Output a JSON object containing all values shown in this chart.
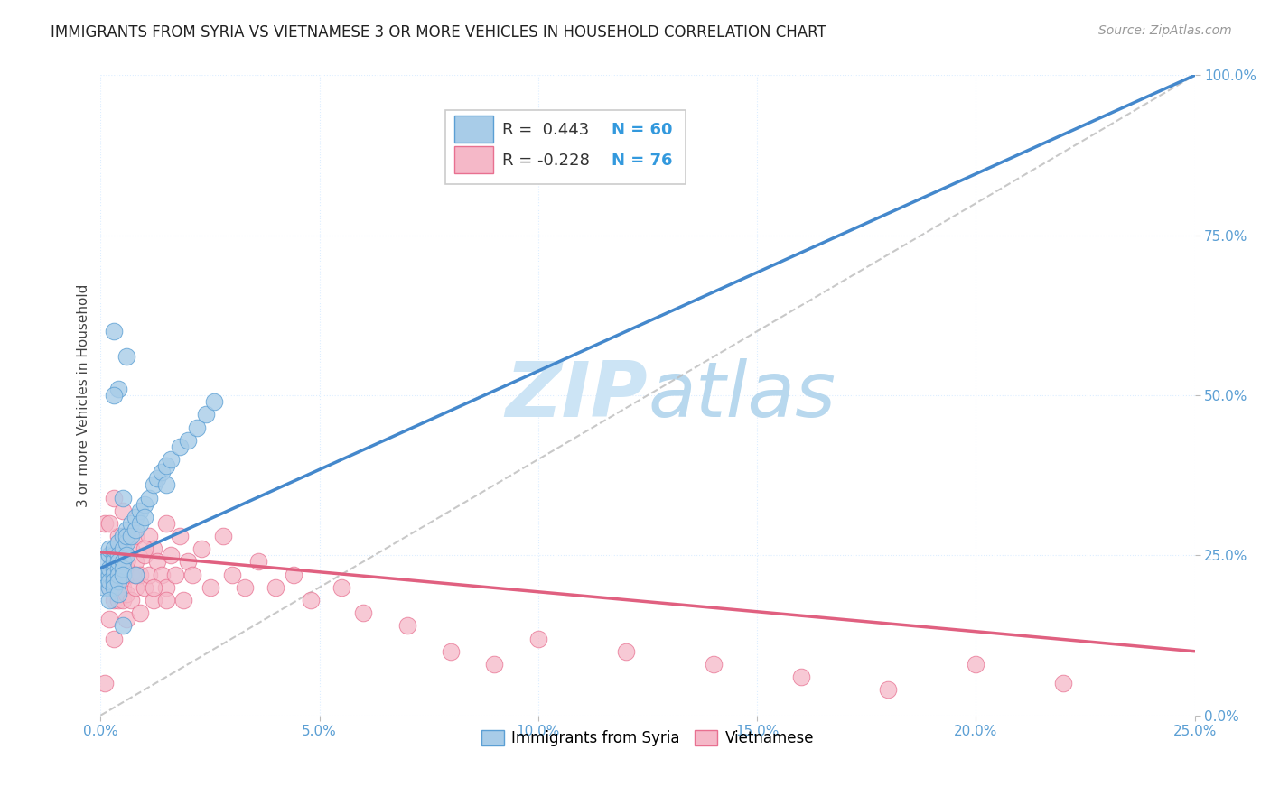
{
  "title": "IMMIGRANTS FROM SYRIA VS VIETNAMESE 3 OR MORE VEHICLES IN HOUSEHOLD CORRELATION CHART",
  "source": "Source: ZipAtlas.com",
  "ylabel": "3 or more Vehicles in Household",
  "xlim": [
    0.0,
    0.25
  ],
  "ylim": [
    0.0,
    1.0
  ],
  "xticks": [
    0.0,
    0.05,
    0.1,
    0.15,
    0.2,
    0.25
  ],
  "yticks": [
    0.0,
    0.25,
    0.5,
    0.75,
    1.0
  ],
  "xticklabels": [
    "0.0%",
    "5.0%",
    "10.0%",
    "15.0%",
    "20.0%",
    "25.0%"
  ],
  "yticklabels": [
    "0.0%",
    "25.0%",
    "50.0%",
    "75.0%",
    "100.0%"
  ],
  "legend_r1": "R =  0.443",
  "legend_n1": "N = 60",
  "legend_r2": "R = -0.228",
  "legend_n2": "N = 76",
  "color_syria": "#a8cce8",
  "color_vietnamese": "#f5b8c8",
  "color_syria_edge": "#5b9fd4",
  "color_vietnamese_edge": "#e87090",
  "color_syria_line": "#4488cc",
  "color_vietnamese_line": "#e06080",
  "color_ref_line": "#bbbbbb",
  "background_color": "#ffffff",
  "grid_color": "#ddeeff",
  "watermark_color": "#cce4f5",
  "syria_x": [
    0.001,
    0.001,
    0.001,
    0.002,
    0.002,
    0.002,
    0.002,
    0.002,
    0.002,
    0.003,
    0.003,
    0.003,
    0.003,
    0.003,
    0.003,
    0.003,
    0.004,
    0.004,
    0.004,
    0.004,
    0.004,
    0.004,
    0.005,
    0.005,
    0.005,
    0.005,
    0.005,
    0.006,
    0.006,
    0.006,
    0.006,
    0.007,
    0.007,
    0.008,
    0.008,
    0.009,
    0.009,
    0.01,
    0.01,
    0.011,
    0.012,
    0.013,
    0.014,
    0.015,
    0.016,
    0.018,
    0.02,
    0.022,
    0.024,
    0.026,
    0.006,
    0.004,
    0.003,
    0.005,
    0.002,
    0.004,
    0.003,
    0.005,
    0.015,
    0.008
  ],
  "syria_y": [
    0.22,
    0.24,
    0.2,
    0.25,
    0.22,
    0.2,
    0.23,
    0.21,
    0.26,
    0.25,
    0.23,
    0.22,
    0.24,
    0.21,
    0.26,
    0.2,
    0.27,
    0.25,
    0.23,
    0.22,
    0.24,
    0.21,
    0.28,
    0.26,
    0.24,
    0.23,
    0.22,
    0.29,
    0.27,
    0.25,
    0.28,
    0.3,
    0.28,
    0.31,
    0.29,
    0.32,
    0.3,
    0.33,
    0.31,
    0.34,
    0.36,
    0.37,
    0.38,
    0.39,
    0.4,
    0.42,
    0.43,
    0.45,
    0.47,
    0.49,
    0.56,
    0.51,
    0.5,
    0.14,
    0.18,
    0.19,
    0.6,
    0.34,
    0.36,
    0.22
  ],
  "viet_x": [
    0.001,
    0.001,
    0.002,
    0.002,
    0.002,
    0.003,
    0.003,
    0.003,
    0.003,
    0.004,
    0.004,
    0.004,
    0.004,
    0.005,
    0.005,
    0.005,
    0.005,
    0.005,
    0.006,
    0.006,
    0.006,
    0.006,
    0.007,
    0.007,
    0.007,
    0.008,
    0.008,
    0.008,
    0.009,
    0.009,
    0.01,
    0.01,
    0.011,
    0.011,
    0.012,
    0.012,
    0.013,
    0.014,
    0.015,
    0.015,
    0.016,
    0.017,
    0.018,
    0.019,
    0.02,
    0.021,
    0.023,
    0.025,
    0.028,
    0.03,
    0.033,
    0.036,
    0.04,
    0.044,
    0.048,
    0.055,
    0.06,
    0.07,
    0.08,
    0.09,
    0.1,
    0.12,
    0.14,
    0.16,
    0.18,
    0.2,
    0.22,
    0.003,
    0.005,
    0.004,
    0.006,
    0.002,
    0.008,
    0.01,
    0.012,
    0.015
  ],
  "viet_y": [
    0.05,
    0.3,
    0.2,
    0.25,
    0.15,
    0.22,
    0.18,
    0.25,
    0.12,
    0.2,
    0.24,
    0.18,
    0.26,
    0.22,
    0.2,
    0.24,
    0.18,
    0.28,
    0.23,
    0.19,
    0.25,
    0.15,
    0.22,
    0.26,
    0.18,
    0.24,
    0.2,
    0.28,
    0.22,
    0.16,
    0.25,
    0.2,
    0.28,
    0.22,
    0.26,
    0.18,
    0.24,
    0.22,
    0.3,
    0.2,
    0.25,
    0.22,
    0.28,
    0.18,
    0.24,
    0.22,
    0.26,
    0.2,
    0.28,
    0.22,
    0.2,
    0.24,
    0.2,
    0.22,
    0.18,
    0.2,
    0.16,
    0.14,
    0.1,
    0.08,
    0.12,
    0.1,
    0.08,
    0.06,
    0.04,
    0.08,
    0.05,
    0.34,
    0.32,
    0.28,
    0.24,
    0.3,
    0.22,
    0.26,
    0.2,
    0.18
  ],
  "syria_line_x0": 0.0,
  "syria_line_y0": 0.23,
  "syria_line_x1": 0.25,
  "syria_line_y1": 1.0,
  "viet_line_x0": 0.0,
  "viet_line_y0": 0.255,
  "viet_line_x1": 0.25,
  "viet_line_y1": 0.1,
  "title_fontsize": 12,
  "label_fontsize": 11,
  "tick_fontsize": 11,
  "legend_fontsize": 13,
  "source_fontsize": 10
}
